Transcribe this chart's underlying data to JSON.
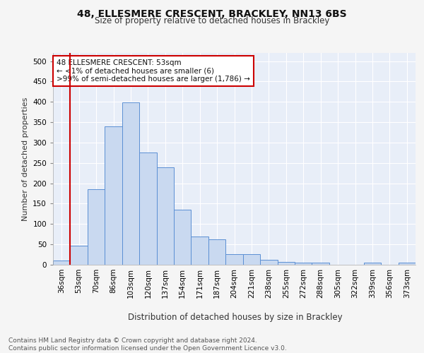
{
  "title1": "48, ELLESMERE CRESCENT, BRACKLEY, NN13 6BS",
  "title2": "Size of property relative to detached houses in Brackley",
  "xlabel": "Distribution of detached houses by size in Brackley",
  "ylabel": "Number of detached properties",
  "footer": "Contains HM Land Registry data © Crown copyright and database right 2024.\nContains public sector information licensed under the Open Government Licence v3.0.",
  "bin_labels": [
    "36sqm",
    "53sqm",
    "70sqm",
    "86sqm",
    "103sqm",
    "120sqm",
    "137sqm",
    "154sqm",
    "171sqm",
    "187sqm",
    "204sqm",
    "221sqm",
    "238sqm",
    "255sqm",
    "272sqm",
    "288sqm",
    "305sqm",
    "322sqm",
    "339sqm",
    "356sqm",
    "373sqm"
  ],
  "bar_values": [
    10,
    46,
    186,
    339,
    399,
    276,
    239,
    136,
    70,
    63,
    26,
    26,
    12,
    7,
    6,
    6,
    0,
    0,
    6,
    0,
    5
  ],
  "bar_color": "#c9d9f0",
  "bar_edge_color": "#5b8fd4",
  "subject_line_color": "#cc0000",
  "subject_bin_index": 1,
  "annotation_text": "48 ELLESMERE CRESCENT: 53sqm\n← <1% of detached houses are smaller (6)\n>99% of semi-detached houses are larger (1,786) →",
  "annotation_box_facecolor": "#ffffff",
  "annotation_box_edgecolor": "#cc0000",
  "ylim": [
    0,
    520
  ],
  "yticks": [
    0,
    50,
    100,
    150,
    200,
    250,
    300,
    350,
    400,
    450,
    500
  ],
  "plot_bg_color": "#e8eef8",
  "fig_bg_color": "#f5f5f5",
  "grid_color": "#ffffff",
  "title1_fontsize": 10,
  "title2_fontsize": 8.5,
  "ylabel_fontsize": 8,
  "xlabel_fontsize": 8.5,
  "tick_fontsize": 7.5,
  "footer_fontsize": 6.5,
  "annot_fontsize": 7.5
}
